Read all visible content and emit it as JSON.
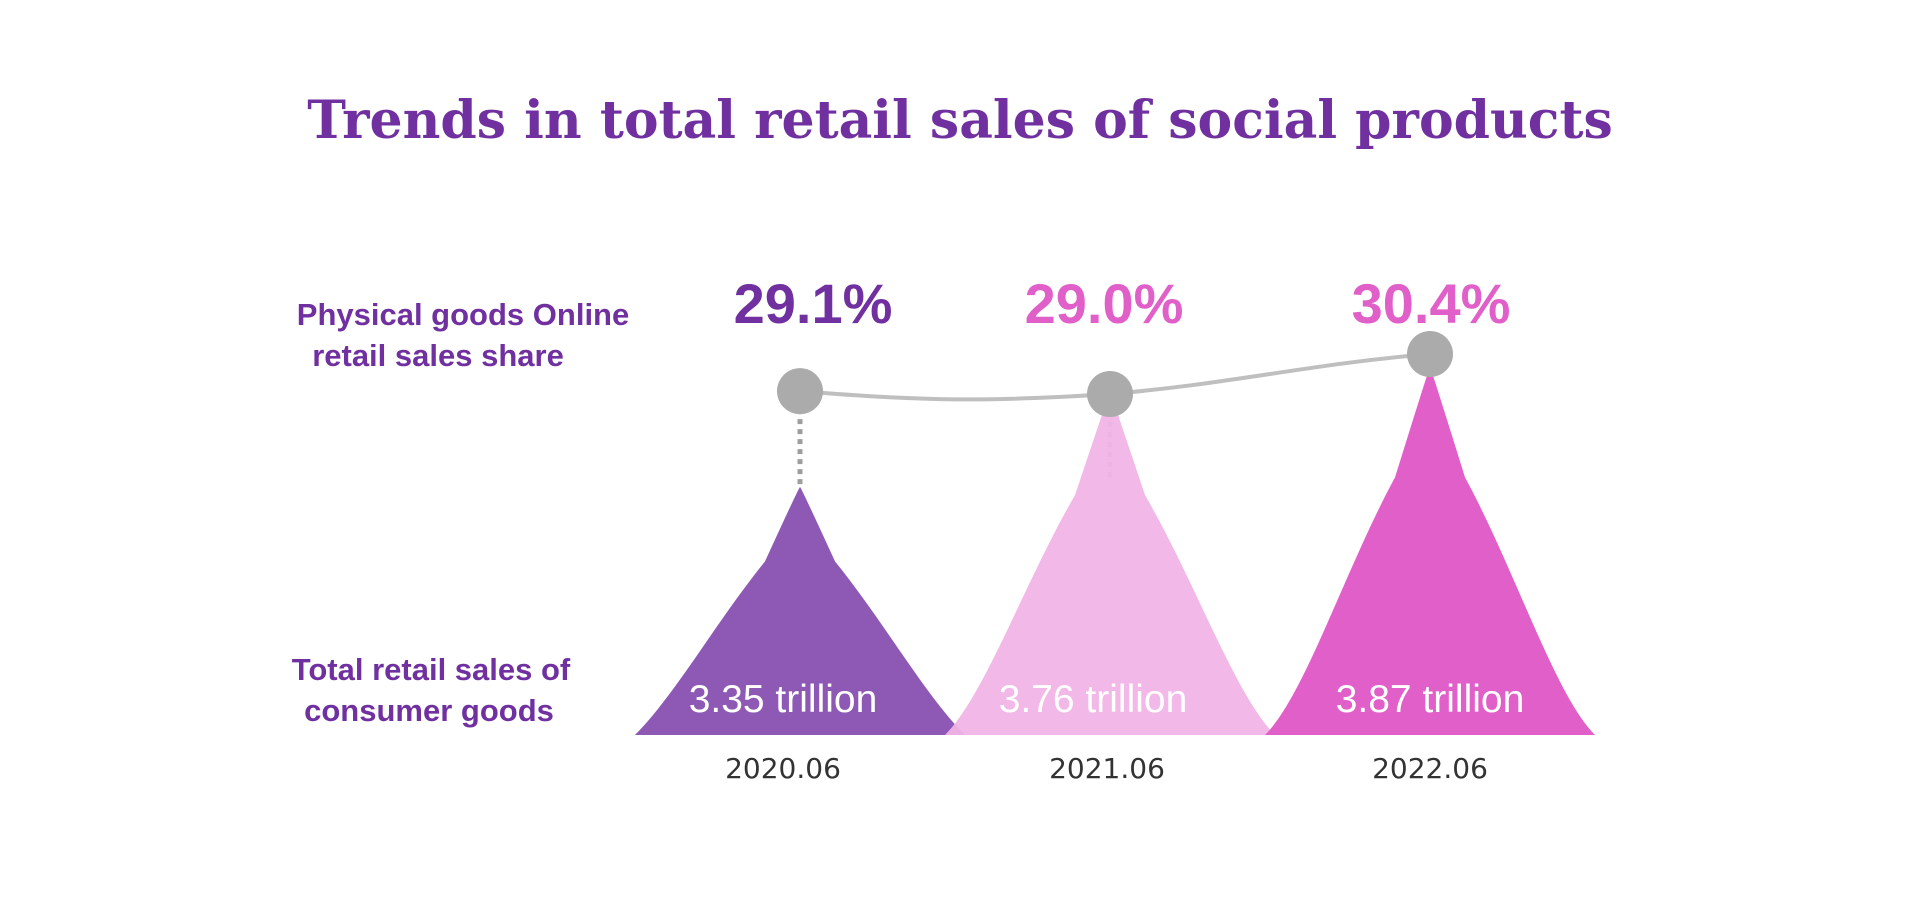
{
  "chart_data": {
    "type": "area",
    "title": "Trends in total retail sales of social products",
    "categories": [
      "2020.06",
      "2021.06",
      "2022.06"
    ],
    "series": [
      {
        "name": "Physical goods Online retail sales share",
        "unit": "%",
        "values": [
          29.1,
          29.0,
          30.4
        ],
        "labels": [
          "29.1%",
          "29.0%",
          "30.4%"
        ]
      },
      {
        "name": "Total retail sales of consumer goods",
        "unit": "trillion",
        "values": [
          3.35,
          3.76,
          3.87
        ],
        "labels": [
          "3.35 trillion",
          "3.76 trillion",
          "3.87 trillion"
        ]
      }
    ],
    "row_labels": {
      "share": [
        "Physical goods Online",
        "retail sales share"
      ],
      "sales": [
        "Total retail sales of",
        "consumer goods"
      ]
    },
    "colors": {
      "title": "#7030A0",
      "row_label": "#7030A0",
      "peaks": [
        "#8E59B4",
        "#F1B4E6",
        "#E05FC8"
      ],
      "pct_labels": [
        "#7030A0",
        "#E05FC8",
        "#E05FC8"
      ],
      "line": "#BFBFBF",
      "dots": "#ABABAB",
      "connector": "#9E9E9E",
      "category_text": "#333333",
      "peak_text": "#FFFFFF"
    }
  }
}
